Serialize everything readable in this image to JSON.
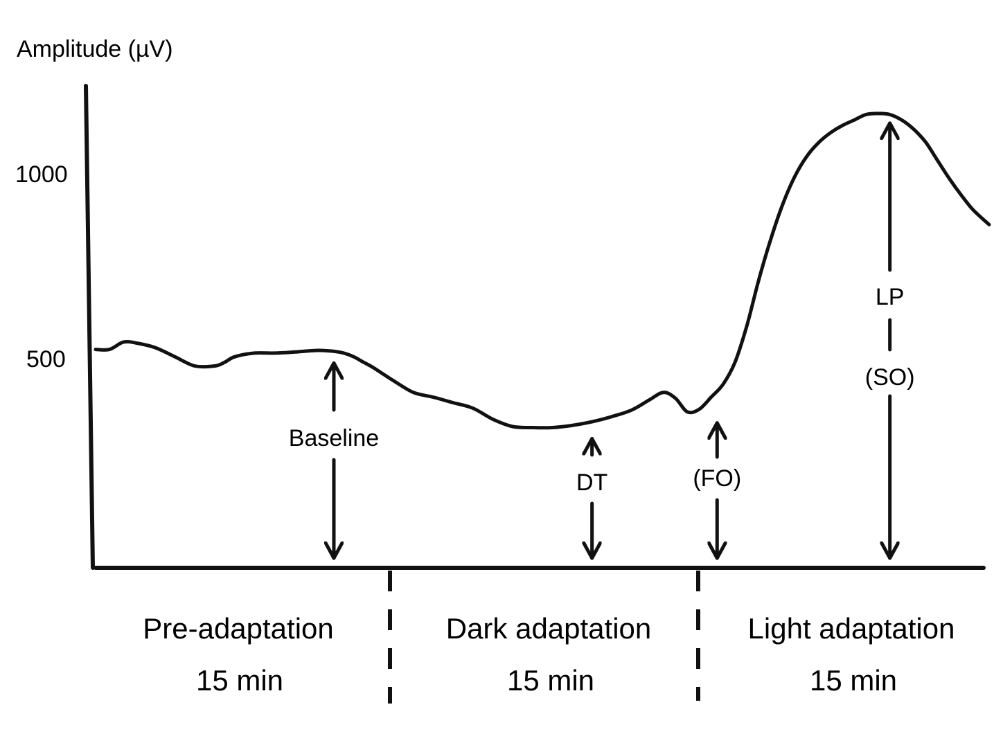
{
  "chart_data": {
    "type": "line",
    "title": "",
    "ylabel": "Amplitude (µV)",
    "xlabel": "",
    "yticks": [
      500,
      1000
    ],
    "ylim": [
      0,
      1300
    ],
    "xlim": [
      0,
      45
    ],
    "x_unit": "min",
    "grid": false,
    "legend": "none",
    "series": [
      {
        "x": [
          0,
          0.7,
          1.4,
          2.1,
          3.0,
          4.0,
          5.0,
          6.0,
          6.5,
          7.0,
          8.0,
          9.0,
          10.0,
          11.0,
          11.5,
          12.0,
          12.5,
          13.0,
          13.5,
          14.0,
          15.0,
          16.0,
          17.0,
          18.0,
          19.0,
          20.0,
          21.0,
          22.0,
          23.0,
          24.0,
          25.0,
          26.0,
          27.0,
          27.9,
          28.6,
          29.2,
          29.8,
          30.4,
          31.0,
          31.6,
          32.2,
          32.8,
          33.4,
          34.0,
          34.6,
          35.2,
          35.8,
          36.4,
          37.0,
          37.6,
          38.2,
          38.8,
          39.4,
          40.0,
          40.6,
          41.2,
          41.8,
          42.4,
          43.0,
          43.6,
          44.2,
          45.0
        ],
        "y": [
          595,
          595,
          615,
          612,
          600,
          575,
          550,
          550,
          560,
          575,
          585,
          585,
          588,
          592,
          592,
          590,
          585,
          575,
          560,
          545,
          510,
          478,
          465,
          450,
          435,
          405,
          385,
          382,
          382,
          388,
          398,
          412,
          430,
          458,
          478,
          462,
          425,
          432,
          465,
          500,
          560,
          660,
          785,
          895,
          990,
          1065,
          1120,
          1158,
          1185,
          1205,
          1220,
          1235,
          1238,
          1235,
          1220,
          1195,
          1160,
          1110,
          1060,
          1015,
          975,
          935
        ]
      }
    ],
    "annotations": [
      {
        "label": "Baseline",
        "x": 12.0,
        "y": 588
      },
      {
        "label": "DT",
        "x": 25.0,
        "y": 382
      },
      {
        "label": "(FO)",
        "x": 31.3,
        "y": 425
      },
      {
        "label": "LP",
        "x": 40.0,
        "y": 1238
      },
      {
        "label": "(SO)",
        "x": 40.0,
        "y": 1238
      }
    ],
    "phases": [
      {
        "name": "Pre-adaptation",
        "duration": "15 min"
      },
      {
        "name": "Dark adaptation",
        "duration": "15 min"
      },
      {
        "name": "Light adaptation",
        "duration": "15 min"
      }
    ]
  }
}
